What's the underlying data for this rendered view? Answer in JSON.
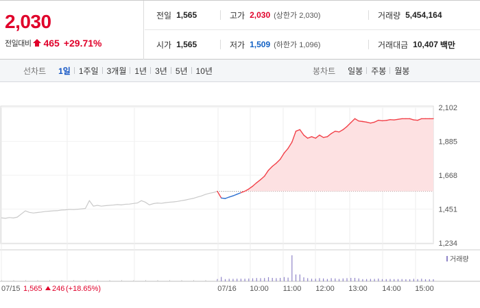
{
  "quote": {
    "price": "2,030",
    "change_label": "전일대비",
    "change_direction": "up",
    "change_amount": "465",
    "change_rate": "+29.71%",
    "up_color": "#e0002a",
    "down_color": "#1261c4"
  },
  "stats": {
    "prev_close": {
      "label": "전일",
      "value": "1,565"
    },
    "open": {
      "label": "시가",
      "value": "1,565"
    },
    "high": {
      "label": "고가",
      "value": "2,030",
      "note": "(상한가 2,030)"
    },
    "low": {
      "label": "저가",
      "value": "1,509",
      "note": "(하한가 1,096)"
    },
    "volume": {
      "label": "거래량",
      "value": "5,454,164"
    },
    "trade_value": {
      "label": "거래대금",
      "value": "10,407",
      "unit": "백만"
    }
  },
  "toolbar": {
    "line_label": "선차트",
    "line_periods": [
      "1일",
      "1주일",
      "3개월",
      "1년",
      "3년",
      "5년",
      "10년"
    ],
    "active_period": "1일",
    "candle_label": "봉차트",
    "candle_periods": [
      "일봉",
      "주봉",
      "월봉"
    ]
  },
  "chart_data": {
    "type": "line",
    "y_ticks": [
      "2,102",
      "1,885",
      "1,668",
      "1,451",
      "1,234"
    ],
    "ylim": [
      1234,
      2102
    ],
    "reference_line": 1565,
    "volume_legend": "거래량",
    "prev_day_label": "07/15",
    "prev_day_close": "1,565",
    "prev_day_change": "246",
    "prev_day_rate": "(+18.65%)",
    "x_ticks": [
      "07/16",
      "10:00",
      "11:00",
      "12:00",
      "13:00",
      "14:00",
      "15:00"
    ],
    "prev_day_series": [
      1395,
      1392,
      1397,
      1394,
      1400,
      1420,
      1440,
      1430,
      1426,
      1429,
      1432,
      1436,
      1438,
      1440,
      1441,
      1445,
      1446,
      1449,
      1448,
      1450,
      1452,
      1455,
      1505,
      1470,
      1475,
      1470,
      1473,
      1475,
      1477,
      1480,
      1478,
      1482,
      1483,
      1487,
      1490,
      1505,
      1495,
      1478,
      1486,
      1490,
      1488,
      1492,
      1495,
      1497,
      1500,
      1505,
      1509,
      1515,
      1520,
      1528,
      1535,
      1545,
      1552,
      1557,
      1565
    ],
    "today_series": [
      1565,
      1522,
      1519,
      1528,
      1536,
      1546,
      1556,
      1566,
      1580,
      1598,
      1620,
      1640,
      1662,
      1700,
      1725,
      1745,
      1770,
      1810,
      1840,
      1880,
      1950,
      1960,
      1925,
      1905,
      1915,
      1905,
      1925,
      1910,
      1915,
      1935,
      1950,
      1945,
      1960,
      1980,
      2005,
      2030,
      2015,
      2012,
      2008,
      2002,
      2008,
      2020,
      2017,
      2019,
      2024,
      2022,
      2026,
      2030,
      2030,
      2030,
      2022,
      2020,
      2030,
      2030,
      2030,
      2030
    ]
  }
}
